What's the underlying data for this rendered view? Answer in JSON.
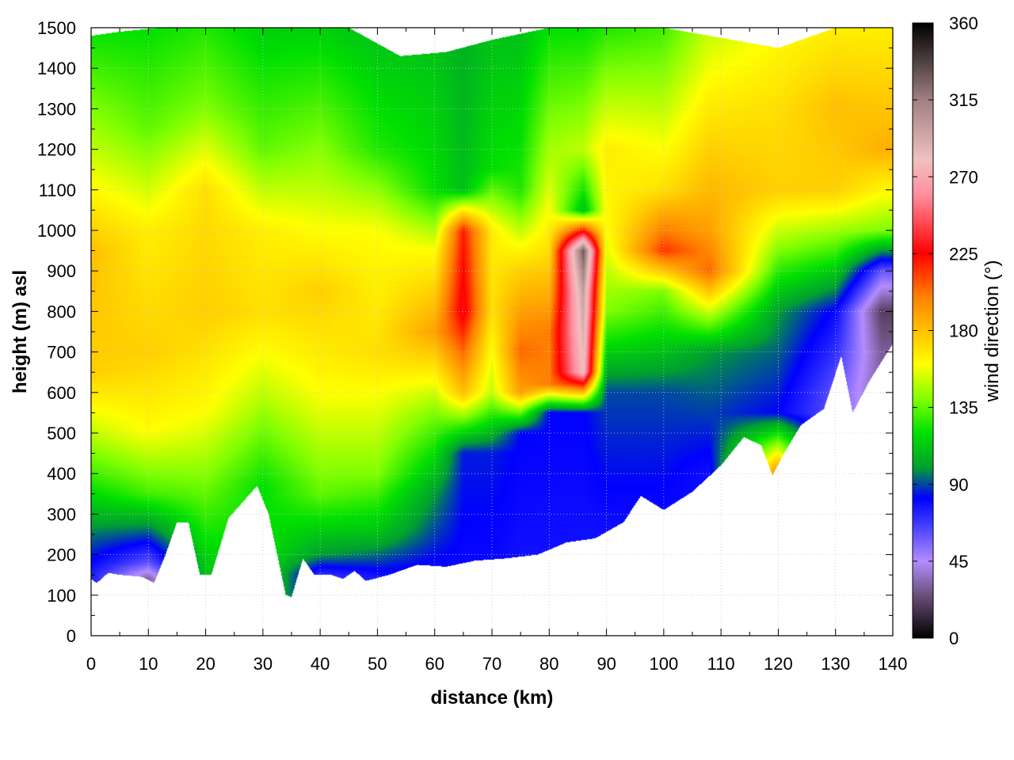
{
  "chart_data": {
    "type": "heatmap",
    "title": "",
    "xlabel": "distance (km)",
    "ylabel": "height (m) asl",
    "colorbar_label": "wind direction (°)",
    "xlim": [
      0,
      140
    ],
    "ylim": [
      0,
      1500
    ],
    "xticks": [
      "0",
      "10",
      "20",
      "30",
      "40",
      "50",
      "60",
      "70",
      "80",
      "90",
      "100",
      "110",
      "120",
      "130",
      "140"
    ],
    "yticks": [
      "0",
      "100",
      "200",
      "300",
      "400",
      "500",
      "600",
      "700",
      "800",
      "900",
      "1000",
      "1100",
      "1200",
      "1300",
      "1400",
      "1500"
    ],
    "colorbar_range": [
      0,
      360
    ],
    "colorbar_ticks": [
      "0",
      "45",
      "90",
      "135",
      "180",
      "225",
      "270",
      "315",
      "360"
    ],
    "colormap": [
      {
        "value": 0,
        "color": "#000000"
      },
      {
        "value": 25,
        "color": "#6a4f7a"
      },
      {
        "value": 45,
        "color": "#b48cff"
      },
      {
        "value": 70,
        "color": "#2f2fff"
      },
      {
        "value": 82,
        "color": "#0000ff"
      },
      {
        "value": 100,
        "color": "#00a030"
      },
      {
        "value": 120,
        "color": "#00e000"
      },
      {
        "value": 140,
        "color": "#80ff00"
      },
      {
        "value": 160,
        "color": "#ffff00"
      },
      {
        "value": 180,
        "color": "#ffc000"
      },
      {
        "value": 200,
        "color": "#ff8000"
      },
      {
        "value": 225,
        "color": "#ff0000"
      },
      {
        "value": 260,
        "color": "#ff90a0"
      },
      {
        "value": 280,
        "color": "#f0c0c0"
      },
      {
        "value": 315,
        "color": "#a08080"
      },
      {
        "value": 360,
        "color": "#000000"
      }
    ],
    "terrain_height_m": [
      {
        "x": 0,
        "y": 140
      },
      {
        "x": 1,
        "y": 130
      },
      {
        "x": 3,
        "y": 155
      },
      {
        "x": 5,
        "y": 150
      },
      {
        "x": 9,
        "y": 145
      },
      {
        "x": 11,
        "y": 130
      },
      {
        "x": 13,
        "y": 200
      },
      {
        "x": 15,
        "y": 280
      },
      {
        "x": 17,
        "y": 280
      },
      {
        "x": 19,
        "y": 150
      },
      {
        "x": 21,
        "y": 150
      },
      {
        "x": 24,
        "y": 290
      },
      {
        "x": 29,
        "y": 370
      },
      {
        "x": 31,
        "y": 300
      },
      {
        "x": 34,
        "y": 100
      },
      {
        "x": 35,
        "y": 95
      },
      {
        "x": 37,
        "y": 190
      },
      {
        "x": 39,
        "y": 150
      },
      {
        "x": 42,
        "y": 150
      },
      {
        "x": 44,
        "y": 140
      },
      {
        "x": 46,
        "y": 160
      },
      {
        "x": 48,
        "y": 135
      },
      {
        "x": 52,
        "y": 150
      },
      {
        "x": 57,
        "y": 175
      },
      {
        "x": 62,
        "y": 170
      },
      {
        "x": 67,
        "y": 185
      },
      {
        "x": 72,
        "y": 190
      },
      {
        "x": 78,
        "y": 200
      },
      {
        "x": 83,
        "y": 230
      },
      {
        "x": 88,
        "y": 240
      },
      {
        "x": 93,
        "y": 280
      },
      {
        "x": 96,
        "y": 345
      },
      {
        "x": 100,
        "y": 310
      },
      {
        "x": 105,
        "y": 355
      },
      {
        "x": 110,
        "y": 420
      },
      {
        "x": 114,
        "y": 490
      },
      {
        "x": 117,
        "y": 470
      },
      {
        "x": 119,
        "y": 395
      },
      {
        "x": 121,
        "y": 450
      },
      {
        "x": 124,
        "y": 520
      },
      {
        "x": 128,
        "y": 560
      },
      {
        "x": 131,
        "y": 690
      },
      {
        "x": 133,
        "y": 550
      },
      {
        "x": 136,
        "y": 630
      },
      {
        "x": 140,
        "y": 720
      }
    ],
    "data_top_height_m": [
      {
        "x": 0,
        "y": 1480
      },
      {
        "x": 5,
        "y": 1490
      },
      {
        "x": 12,
        "y": 1500
      },
      {
        "x": 20,
        "y": 1500
      },
      {
        "x": 30,
        "y": 1500
      },
      {
        "x": 45,
        "y": 1500
      },
      {
        "x": 54,
        "y": 1430
      },
      {
        "x": 62,
        "y": 1440
      },
      {
        "x": 70,
        "y": 1470
      },
      {
        "x": 80,
        "y": 1500
      },
      {
        "x": 100,
        "y": 1500
      },
      {
        "x": 120,
        "y": 1450
      },
      {
        "x": 130,
        "y": 1500
      },
      {
        "x": 140,
        "y": 1500
      }
    ],
    "wind_direction_deg": [
      {
        "x": 0,
        "profile": [
          [
            150,
            75
          ],
          [
            250,
            95
          ],
          [
            400,
            130
          ],
          [
            500,
            150
          ],
          [
            650,
            175
          ],
          [
            950,
            180
          ],
          [
            1200,
            150
          ],
          [
            1500,
            120
          ]
        ]
      },
      {
        "x": 10,
        "profile": [
          [
            140,
            30
          ],
          [
            180,
            60
          ],
          [
            250,
            90
          ],
          [
            350,
            130
          ],
          [
            500,
            160
          ],
          [
            700,
            175
          ],
          [
            1000,
            165
          ],
          [
            1250,
            135
          ],
          [
            1500,
            120
          ]
        ]
      },
      {
        "x": 20,
        "profile": [
          [
            150,
            110
          ],
          [
            350,
            135
          ],
          [
            550,
            160
          ],
          [
            800,
            175
          ],
          [
            1100,
            170
          ],
          [
            1300,
            140
          ],
          [
            1500,
            125
          ]
        ]
      },
      {
        "x": 30,
        "profile": [
          [
            370,
            120
          ],
          [
            600,
            150
          ],
          [
            800,
            170
          ],
          [
            1000,
            165
          ],
          [
            1200,
            135
          ],
          [
            1500,
            115
          ]
        ]
      },
      {
        "x": 40,
        "profile": [
          [
            150,
            70
          ],
          [
            200,
            100
          ],
          [
            350,
            135
          ],
          [
            600,
            160
          ],
          [
            850,
            175
          ],
          [
            1100,
            150
          ],
          [
            1500,
            115
          ]
        ]
      },
      {
        "x": 50,
        "profile": [
          [
            140,
            75
          ],
          [
            250,
            110
          ],
          [
            400,
            140
          ],
          [
            700,
            170
          ],
          [
            1000,
            160
          ],
          [
            1200,
            125
          ],
          [
            1500,
            110
          ]
        ]
      },
      {
        "x": 60,
        "profile": [
          [
            170,
            80
          ],
          [
            350,
            100
          ],
          [
            550,
            140
          ],
          [
            750,
            190
          ],
          [
            950,
            160
          ],
          [
            1100,
            120
          ],
          [
            1500,
            110
          ]
        ]
      },
      {
        "x": 65,
        "profile": [
          [
            175,
            80
          ],
          [
            450,
            85
          ],
          [
            600,
            180
          ],
          [
            800,
            230
          ],
          [
            1000,
            220
          ],
          [
            1100,
            110
          ],
          [
            1500,
            105
          ]
        ]
      },
      {
        "x": 70,
        "profile": [
          [
            185,
            80
          ],
          [
            450,
            85
          ],
          [
            600,
            150
          ],
          [
            800,
            170
          ],
          [
            1000,
            165
          ],
          [
            1150,
            120
          ],
          [
            1500,
            110
          ]
        ]
      },
      {
        "x": 75,
        "profile": [
          [
            190,
            78
          ],
          [
            500,
            82
          ],
          [
            600,
            190
          ],
          [
            700,
            205
          ],
          [
            900,
            175
          ],
          [
            1100,
            125
          ],
          [
            1500,
            110
          ]
        ]
      },
      {
        "x": 80,
        "profile": [
          [
            200,
            78
          ],
          [
            550,
            82
          ],
          [
            620,
            200
          ],
          [
            750,
            200
          ],
          [
            950,
            170
          ],
          [
            1150,
            150
          ],
          [
            1500,
            120
          ]
        ]
      },
      {
        "x": 86,
        "profile": [
          [
            240,
            78
          ],
          [
            550,
            82
          ],
          [
            650,
            280
          ],
          [
            850,
            300
          ],
          [
            950,
            330
          ],
          [
            1050,
            110
          ],
          [
            1200,
            150
          ],
          [
            1500,
            120
          ]
        ]
      },
      {
        "x": 90,
        "profile": [
          [
            250,
            78
          ],
          [
            600,
            90
          ],
          [
            800,
            140
          ],
          [
            1000,
            160
          ],
          [
            1200,
            165
          ],
          [
            1500,
            125
          ]
        ]
      },
      {
        "x": 100,
        "profile": [
          [
            310,
            80
          ],
          [
            600,
            90
          ],
          [
            850,
            140
          ],
          [
            950,
            215
          ],
          [
            1100,
            170
          ],
          [
            1300,
            150
          ],
          [
            1500,
            130
          ]
        ]
      },
      {
        "x": 108,
        "profile": [
          [
            400,
            78
          ],
          [
            700,
            100
          ],
          [
            900,
            205
          ],
          [
            1000,
            190
          ],
          [
            1200,
            175
          ],
          [
            1500,
            150
          ]
        ]
      },
      {
        "x": 120,
        "profile": [
          [
            400,
            200
          ],
          [
            550,
            82
          ],
          [
            800,
            100
          ],
          [
            950,
            140
          ],
          [
            1100,
            175
          ],
          [
            1300,
            170
          ],
          [
            1500,
            160
          ]
        ]
      },
      {
        "x": 130,
        "profile": [
          [
            600,
            60
          ],
          [
            800,
            80
          ],
          [
            950,
            130
          ],
          [
            1100,
            175
          ],
          [
            1300,
            180
          ],
          [
            1500,
            165
          ]
        ]
      },
      {
        "x": 138,
        "profile": [
          [
            700,
            30
          ],
          [
            800,
            20
          ],
          [
            900,
            60
          ],
          [
            1000,
            140
          ],
          [
            1200,
            185
          ],
          [
            1500,
            165
          ]
        ]
      }
    ]
  }
}
